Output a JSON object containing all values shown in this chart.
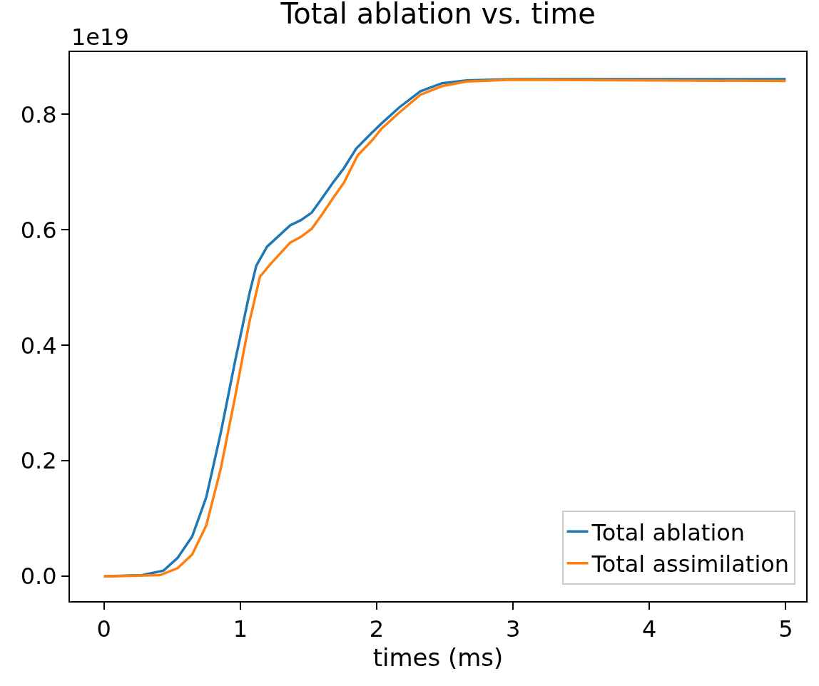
{
  "chart_data": {
    "type": "line",
    "title": "Total ablation vs. time",
    "xlabel": "times (ms)",
    "annotations": [
      "1e19"
    ],
    "xlim": [
      -0.25,
      5.15
    ],
    "ylim": [
      -0.043,
      0.908
    ],
    "xticks": [
      0,
      1,
      2,
      3,
      4,
      5
    ],
    "yticks": [
      {
        "value": 0,
        "label": "0.0"
      },
      0.2,
      0.4,
      0.6,
      0.8
    ],
    "grid": false,
    "legend": "bottom right",
    "marker": "none",
    "line_style": "solid",
    "series": [
      {
        "name": "Total ablation",
        "color": "#1f77b4",
        "x": [
          0,
          0.28,
          0.437,
          0.54,
          0.647,
          0.75,
          0.856,
          0.96,
          1.065,
          1.117,
          1.196,
          1.366,
          1.445,
          1.524,
          1.6,
          1.68,
          1.76,
          1.85,
          1.955,
          2.034,
          2.165,
          2.32,
          2.48,
          2.66,
          3,
          4,
          5
        ],
        "values": [
          0,
          0.002,
          0.01,
          0.032,
          0.069,
          0.137,
          0.248,
          0.371,
          0.488,
          0.538,
          0.571,
          0.608,
          0.617,
          0.63,
          0.655,
          0.682,
          0.707,
          0.741,
          0.766,
          0.784,
          0.812,
          0.84,
          0.854,
          0.859,
          0.861,
          0.861,
          0.861
        ]
      },
      {
        "name": "Total assimilation",
        "color": "#ff7f0e",
        "x": [
          0,
          0.41,
          0.54,
          0.647,
          0.75,
          0.856,
          0.96,
          1.065,
          1.144,
          1.222,
          1.366,
          1.445,
          1.524,
          1.6,
          1.68,
          1.76,
          1.86,
          1.97,
          2.034,
          2.165,
          2.32,
          2.48,
          2.66,
          3,
          4,
          5
        ],
        "values": [
          0,
          0.002,
          0.014,
          0.038,
          0.088,
          0.186,
          0.309,
          0.439,
          0.519,
          0.541,
          0.578,
          0.588,
          0.602,
          0.627,
          0.655,
          0.682,
          0.729,
          0.756,
          0.775,
          0.803,
          0.834,
          0.849,
          0.857,
          0.86,
          0.859,
          0.858
        ]
      }
    ]
  }
}
